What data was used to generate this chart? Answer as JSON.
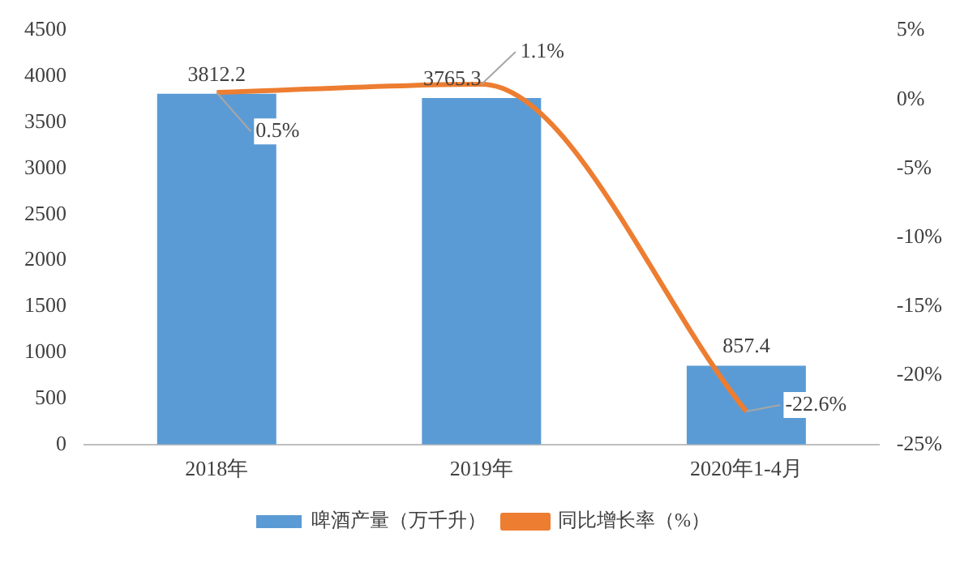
{
  "chart_data": {
    "type": "bar",
    "categories": [
      "2018年",
      "2019年",
      "2020年1-4月"
    ],
    "series": [
      {
        "name": "啤酒产量（万千升）",
        "color": "#5b9bd5",
        "values": [
          3812.2,
          3765.3,
          857.4
        ]
      },
      {
        "name": "同比增长率（%）",
        "type": "line",
        "axis": "y2",
        "color": "#ed7d31",
        "values": [
          0.5,
          1.1,
          -22.6
        ],
        "value_labels": [
          "0.5%",
          "1.1%",
          "-22.6%"
        ]
      }
    ],
    "ylim": [
      0,
      4500
    ],
    "yticks": [
      0,
      500,
      1000,
      1500,
      2000,
      2500,
      3000,
      3500,
      4000,
      4500
    ],
    "y2lim": [
      -25,
      5
    ],
    "y2ticks": [
      {
        "value": -25,
        "label": "-25%"
      },
      {
        "value": -20,
        "label": "-20%"
      },
      {
        "value": -15,
        "label": "-15%"
      },
      {
        "value": -10,
        "label": "-10%"
      },
      {
        "value": -5,
        "label": "-5%"
      },
      {
        "value": 0,
        "label": "0%"
      },
      {
        "value": 5,
        "label": "5%"
      }
    ],
    "data_labels": true,
    "legend": "bottom",
    "grid": false,
    "marker": "none"
  }
}
